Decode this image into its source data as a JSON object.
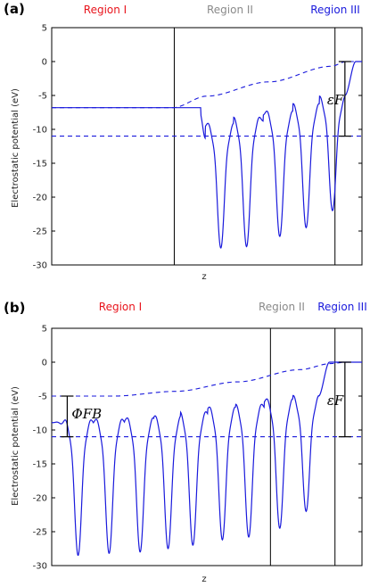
{
  "chart_data": [
    {
      "type": "line",
      "panel_label": "(a)",
      "ylabel": "Electrostatic potential (eV)",
      "xlabel": "z",
      "ylim": [
        -30,
        5
      ],
      "yticks": [
        5,
        0,
        -5,
        -10,
        -15,
        -20,
        -25,
        -30
      ],
      "regions": [
        {
          "label": "Region I",
          "color": "#e8141c"
        },
        {
          "label": "Region II",
          "color": "#8a8a8a"
        },
        {
          "label": "Region III",
          "color": "#1a1adc"
        }
      ],
      "boundaries": [
        0.395,
        0.913
      ],
      "fermi_level": -11.0,
      "vacuum_level": 0.0,
      "bracket_label": "εF",
      "bracket_range": [
        -11.0,
        0.0
      ],
      "flat_left_level": -6.8,
      "wells": [
        {
          "x": 0.545,
          "depth": -27.5,
          "shoulder": -9.5
        },
        {
          "x": 0.628,
          "depth": -27.3,
          "shoulder": -8.6
        },
        {
          "x": 0.735,
          "depth": -25.8,
          "shoulder": -7.7
        },
        {
          "x": 0.82,
          "depth": -24.5,
          "shoulder": -6.6
        },
        {
          "x": 0.905,
          "depth": -22.0,
          "shoulder": -5.5
        }
      ],
      "average_curve": [
        [
          0.0,
          -6.8
        ],
        [
          0.39,
          -6.8
        ],
        [
          0.5,
          -5.1
        ],
        [
          0.7,
          -3.0
        ],
        [
          0.9,
          -0.7
        ],
        [
          0.95,
          0.0
        ],
        [
          1.0,
          0.0
        ]
      ]
    },
    {
      "type": "line",
      "panel_label": "(b)",
      "ylabel": "Electrostatic potential (eV)",
      "xlabel": "z",
      "ylim": [
        -30,
        5
      ],
      "yticks": [
        5,
        0,
        -5,
        -10,
        -15,
        -20,
        -25,
        -30
      ],
      "regions": [
        {
          "label": "Region I",
          "color": "#e8141c"
        },
        {
          "label": "Region II",
          "color": "#8a8a8a"
        },
        {
          "label": "Region III",
          "color": "#1a1adc"
        }
      ],
      "boundaries": [
        0.705,
        0.913
      ],
      "fermi_level": -11.0,
      "vacuum_level": 0.0,
      "bracket_label": "εF",
      "bracket_range": [
        -11.0,
        0.0
      ],
      "phi_label": "ΦFB",
      "phi_range": [
        -11.0,
        -5.0
      ],
      "wells": [
        {
          "x": 0.085,
          "depth": -28.5,
          "shoulder": -8.9
        },
        {
          "x": 0.185,
          "depth": -28.2,
          "shoulder": -8.8
        },
        {
          "x": 0.285,
          "depth": -28.0,
          "shoulder": -8.6
        },
        {
          "x": 0.375,
          "depth": -27.5,
          "shoulder": -8.3
        },
        {
          "x": 0.455,
          "depth": -27.0,
          "shoulder": -7.7
        },
        {
          "x": 0.55,
          "depth": -26.2,
          "shoulder": -7.0
        },
        {
          "x": 0.635,
          "depth": -25.8,
          "shoulder": -6.6
        },
        {
          "x": 0.735,
          "depth": -24.5,
          "shoulder": -5.8
        },
        {
          "x": 0.82,
          "depth": -22.0,
          "shoulder": -5.3
        }
      ],
      "average_curve": [
        [
          0.0,
          -5.0
        ],
        [
          0.2,
          -5.0
        ],
        [
          0.4,
          -4.3
        ],
        [
          0.6,
          -2.9
        ],
        [
          0.8,
          -1.1
        ],
        [
          0.9,
          -0.2
        ],
        [
          0.95,
          0.0
        ],
        [
          1.0,
          0.0
        ]
      ]
    }
  ]
}
